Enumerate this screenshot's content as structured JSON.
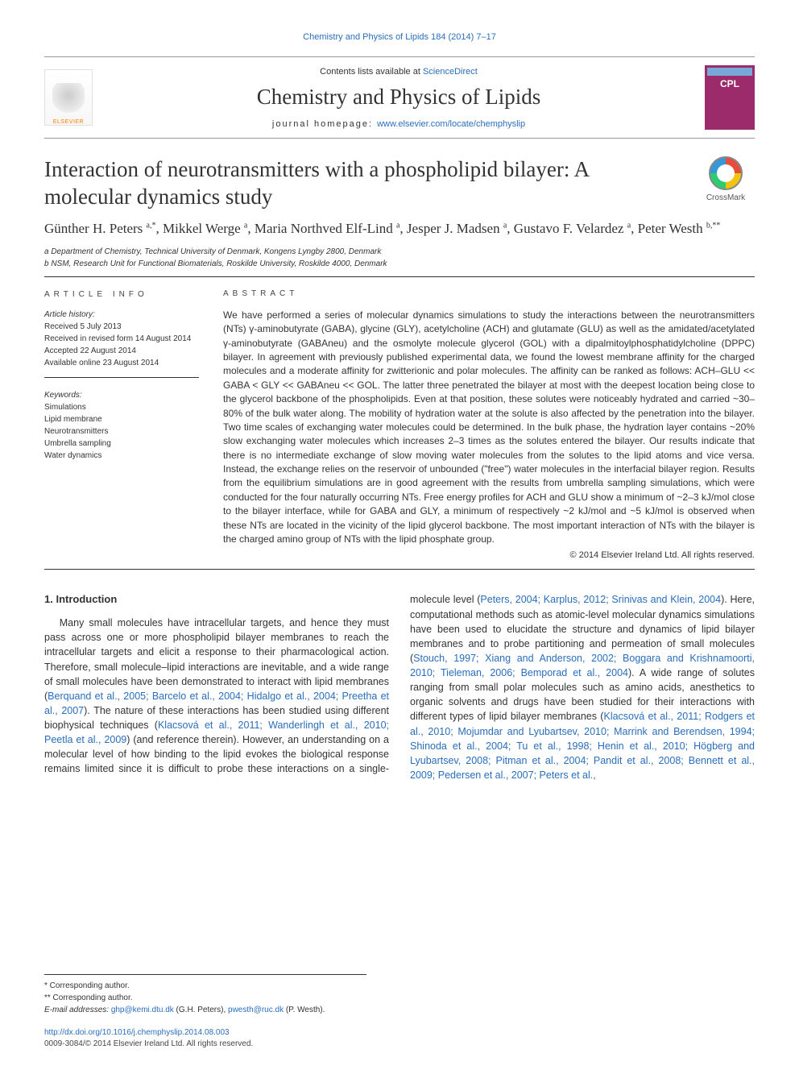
{
  "header": {
    "citation_journal": "Chemistry and Physics of Lipids",
    "citation_vol_pages": "184 (2014) 7–17",
    "contents_prefix": "Contents lists available at ",
    "contents_link": "ScienceDirect",
    "journal_name": "Chemistry and Physics of Lipids",
    "homepage_label": "journal homepage: ",
    "homepage_url": "www.elsevier.com/locate/chemphyslip",
    "elsevier": "ELSEVIER",
    "cover_abbrev": "CPL",
    "crossmark": "CrossMark"
  },
  "title": "Interaction of neurotransmitters with a phospholipid bilayer: A molecular dynamics study",
  "authors_html": "Günther H. Peters <sup>a,*</sup>, Mikkel Werge <sup>a</sup>, Maria Northved Elf-Lind <sup>a</sup>, Jesper J. Madsen <sup>a</sup>, Gustavo F. Velardez <sup>a</sup>, Peter Westh <sup>b,**</sup>",
  "affiliations": [
    "a Department of Chemistry, Technical University of Denmark, Kongens Lyngby 2800, Denmark",
    "b NSM, Research Unit for Functional Biomaterials, Roskilde University, Roskilde 4000, Denmark"
  ],
  "article_info": {
    "label": "ARTICLE INFO",
    "history_label": "Article history:",
    "history": [
      "Received 5 July 2013",
      "Received in revised form 14 August 2014",
      "Accepted 22 August 2014",
      "Available online 23 August 2014"
    ],
    "keywords_label": "Keywords:",
    "keywords": [
      "Simulations",
      "Lipid membrane",
      "Neurotransmitters",
      "Umbrella sampling",
      "Water dynamics"
    ]
  },
  "abstract": {
    "label": "ABSTRACT",
    "text": "We have performed a series of molecular dynamics simulations to study the interactions between the neurotransmitters (NTs) γ-aminobutyrate (GABA), glycine (GLY), acetylcholine (ACH) and glutamate (GLU) as well as the amidated/acetylated γ-aminobutyrate (GABAneu) and the osmolyte molecule glycerol (GOL) with a dipalmitoylphosphatidylcholine (DPPC) bilayer. In agreement with previously published experimental data, we found the lowest membrane affinity for the charged molecules and a moderate affinity for zwitterionic and polar molecules. The affinity can be ranked as follows: ACH–GLU << GABA < GLY << GABAneu << GOL. The latter three penetrated the bilayer at most with the deepest location being close to the glycerol backbone of the phospholipids. Even at that position, these solutes were noticeably hydrated and carried ~30–80% of the bulk water along. The mobility of hydration water at the solute is also affected by the penetration into the bilayer. Two time scales of exchanging water molecules could be determined. In the bulk phase, the hydration layer contains ~20% slow exchanging water molecules which increases 2–3 times as the solutes entered the bilayer. Our results indicate that there is no intermediate exchange of slow moving water molecules from the solutes to the lipid atoms and vice versa. Instead, the exchange relies on the reservoir of unbounded (\"free\") water molecules in the interfacial bilayer region. Results from the equilibrium simulations are in good agreement with the results from umbrella sampling simulations, which were conducted for the four naturally occurring NTs. Free energy profiles for ACH and GLU show a minimum of ~2–3 kJ/mol close to the bilayer interface, while for GABA and GLY, a minimum of respectively ~2 kJ/mol and ~5 kJ/mol is observed when these NTs are located in the vicinity of the lipid glycerol backbone. The most important interaction of NTs with the bilayer is the charged amino group of NTs with the lipid phosphate group.",
    "copyright": "© 2014 Elsevier Ireland Ltd. All rights reserved."
  },
  "body": {
    "heading": "1. Introduction",
    "p1": "Many small molecules have intracellular targets, and hence they must pass across one or more phospholipid bilayer membranes to reach the intracellular targets and elicit a response to their pharmacological action. Therefore, small molecule–lipid interactions are inevitable, and a wide range of small molecules have been demonstrated to interact with lipid membranes (",
    "r1": "Berquand et al., 2005; Barcelo et al., 2004; Hidalgo et al., 2004; Preetha et al., 2007",
    "p1b": "). The nature of these interactions has been studied using different biophysical techniques (",
    "r2": "Klacsová et al., 2011; Wanderlingh et al., 2010; Peetla et al., 2009",
    "p1c": ") (and reference ",
    "p2": "therein). However, an understanding on a molecular level of how binding to the lipid evokes the biological response remains limited since it is difficult to probe these interactions on a single-molecule level (",
    "r3": "Peters, 2004; Karplus, 2012; Srinivas and Klein, 2004",
    "p2b": "). Here, computational methods such as atomic-level molecular dynamics simulations have been used to elucidate the structure and dynamics of lipid bilayer membranes and to probe partitioning and permeation of small molecules (",
    "r4": "Stouch, 1997; Xiang and Anderson, 2002; Boggara and Krishnamoorti, 2010; Tieleman, 2006; Bemporad et al., 2004",
    "p2c": "). A wide range of solutes ranging from small polar molecules such as amino acids, anesthetics to organic solvents and drugs have been studied for their interactions with different types of lipid bilayer membranes (",
    "r5": "Klacsová et al., 2011; Rodgers et al., 2010; Mojumdar and Lyubartsev, 2010; Marrink and Berendsen, 1994; Shinoda et al., 2004; Tu et al., 1998; Henin et al., 2010; Högberg and Lyubartsev, 2008; Pitman et al., 2004; Pandit et al., 2008; Bennett et al., 2009; Pedersen et al., 2007; Peters et al.,"
  },
  "footnotes": {
    "c1": "* Corresponding author.",
    "c2": "** Corresponding author.",
    "emails_label": "E-mail addresses: ",
    "email1": "ghp@kemi.dtu.dk",
    "email1_who": " (G.H. Peters), ",
    "email2": "pwesth@ruc.dk",
    "email2_who": " (P. Westh)."
  },
  "footer": {
    "doi": "http://dx.doi.org/10.1016/j.chemphyslip.2014.08.003",
    "issn_line": "0009-3084/© 2014 Elsevier Ireland Ltd. All rights reserved."
  },
  "colors": {
    "link": "#2a6ebb",
    "elsevier_orange": "#ff7b00",
    "cover_bg": "#9c2b6b",
    "rule": "#333333"
  }
}
